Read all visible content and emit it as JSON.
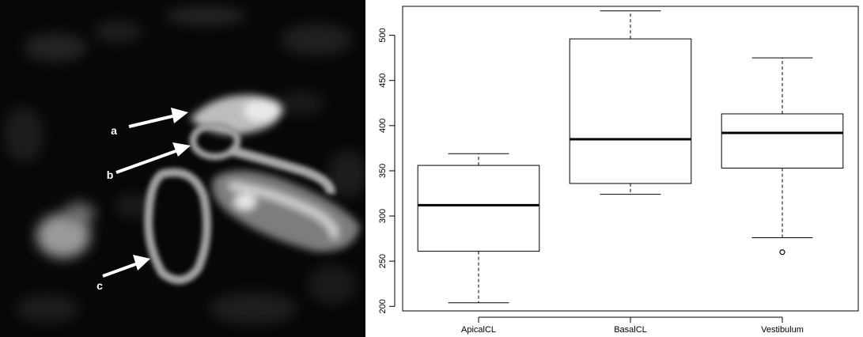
{
  "figure_labels": {
    "a": "a",
    "b": "b",
    "c": "c"
  },
  "chart_data": {
    "type": "boxplot",
    "title": "",
    "xlabel": "",
    "ylabel": "",
    "ylim": [
      195,
      532
    ],
    "y_ticks": [
      200,
      250,
      300,
      350,
      400,
      450,
      500
    ],
    "categories": [
      "ApicalCL",
      "BasalCL",
      "Vestibulum"
    ],
    "boxes": [
      {
        "category": "ApicalCL",
        "whisker_low": 204,
        "q1": 261,
        "median": 312,
        "q3": 356,
        "whisker_high": 369,
        "outliers": []
      },
      {
        "category": "BasalCL",
        "whisker_low": 324,
        "q1": 336,
        "median": 385,
        "q3": 496,
        "whisker_high": 527,
        "outliers": []
      },
      {
        "category": "Vestibulum",
        "whisker_low": 276,
        "q1": 353,
        "median": 392,
        "q3": 413,
        "whisker_high": 475,
        "outliers": [
          260
        ]
      }
    ],
    "grid": false,
    "legend": "none"
  }
}
